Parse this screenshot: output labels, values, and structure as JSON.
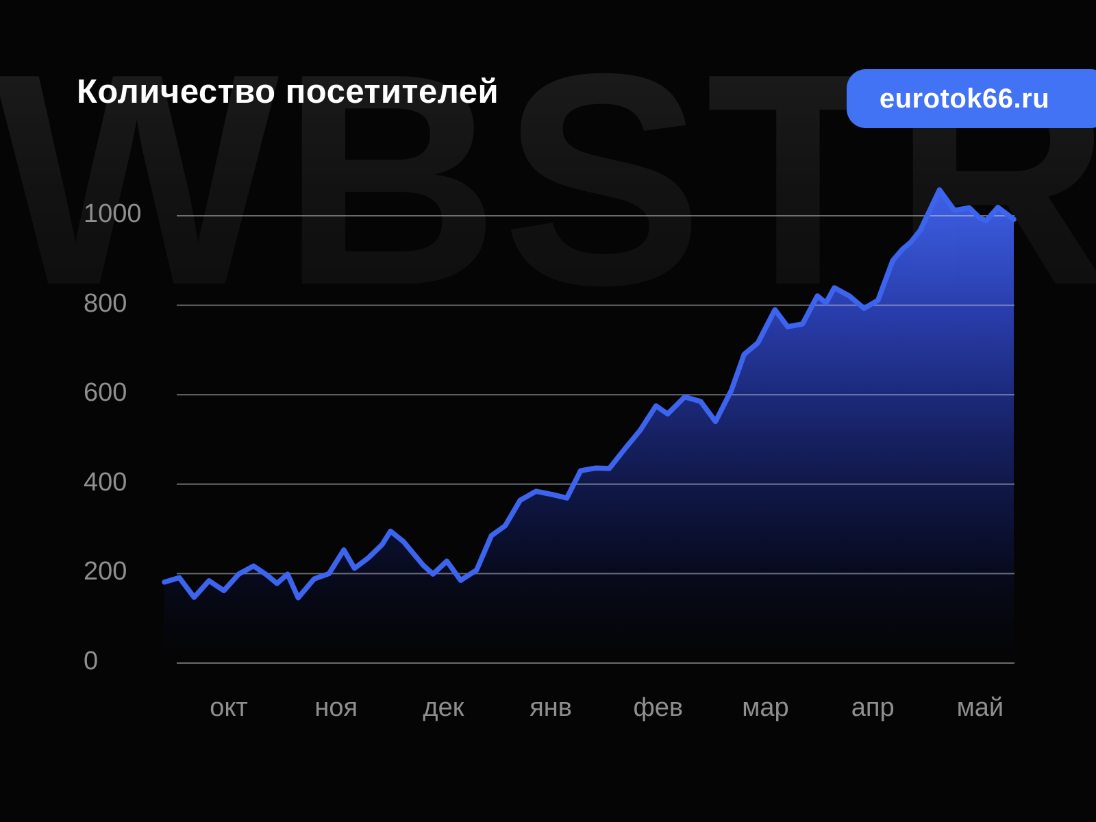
{
  "header": {
    "title": "Количество посетителей",
    "badge_label": "eurotok66.ru"
  },
  "watermark_text": "WBSTR",
  "chart_data": {
    "type": "area",
    "title": "Количество посетителей",
    "xlabel": "",
    "ylabel": "",
    "x_labels": [
      "окт",
      "ноя",
      "дек",
      "янв",
      "фев",
      "мар",
      "апр",
      "май"
    ],
    "y_ticks": [
      0,
      200,
      400,
      600,
      800,
      1000
    ],
    "ylim": [
      0,
      1100
    ],
    "grid": true,
    "legend": "none",
    "series": [
      {
        "name": "visitors",
        "points": [
          [
            0.0,
            181
          ],
          [
            0.14,
            191
          ],
          [
            0.28,
            147
          ],
          [
            0.42,
            184
          ],
          [
            0.56,
            162
          ],
          [
            0.7,
            199
          ],
          [
            0.84,
            217
          ],
          [
            0.97,
            196
          ],
          [
            1.06,
            178
          ],
          [
            1.16,
            199
          ],
          [
            1.26,
            146
          ],
          [
            1.41,
            188
          ],
          [
            1.55,
            200
          ],
          [
            1.69,
            253
          ],
          [
            1.79,
            212
          ],
          [
            1.92,
            235
          ],
          [
            2.05,
            265
          ],
          [
            2.13,
            295
          ],
          [
            2.25,
            272
          ],
          [
            2.32,
            252
          ],
          [
            2.44,
            218
          ],
          [
            2.53,
            199
          ],
          [
            2.66,
            228
          ],
          [
            2.79,
            185
          ],
          [
            2.94,
            208
          ],
          [
            3.08,
            285
          ],
          [
            3.21,
            307
          ],
          [
            3.35,
            364
          ],
          [
            3.5,
            384
          ],
          [
            3.65,
            377
          ],
          [
            3.79,
            369
          ],
          [
            3.92,
            430
          ],
          [
            4.06,
            436
          ],
          [
            4.19,
            435
          ],
          [
            4.34,
            480
          ],
          [
            4.48,
            520
          ],
          [
            4.63,
            575
          ],
          [
            4.74,
            557
          ],
          [
            4.9,
            595
          ],
          [
            5.05,
            585
          ],
          [
            5.19,
            540
          ],
          [
            5.34,
            610
          ],
          [
            5.46,
            690
          ],
          [
            5.59,
            716
          ],
          [
            5.75,
            790
          ],
          [
            5.87,
            752
          ],
          [
            6.01,
            758
          ],
          [
            6.15,
            821
          ],
          [
            6.23,
            805
          ],
          [
            6.31,
            839
          ],
          [
            6.45,
            821
          ],
          [
            6.59,
            793
          ],
          [
            6.72,
            811
          ],
          [
            6.86,
            900
          ],
          [
            6.95,
            925
          ],
          [
            7.03,
            941
          ],
          [
            7.12,
            968
          ],
          [
            7.3,
            1058
          ],
          [
            7.44,
            1012
          ],
          [
            7.58,
            1018
          ],
          [
            7.68,
            995
          ],
          [
            7.74,
            989
          ],
          [
            7.85,
            1019
          ],
          [
            8.0,
            992
          ]
        ]
      }
    ],
    "colors": {
      "line": "#3c64ef",
      "fill_top": "#4064f0",
      "fill_bottom": "#05071c",
      "grid": "#cdd2dc",
      "tick_label": "#8f8f8f",
      "badge_bg": "#4273f4",
      "background": "#050505",
      "watermark": "#161616",
      "title": "#ffffff"
    }
  }
}
